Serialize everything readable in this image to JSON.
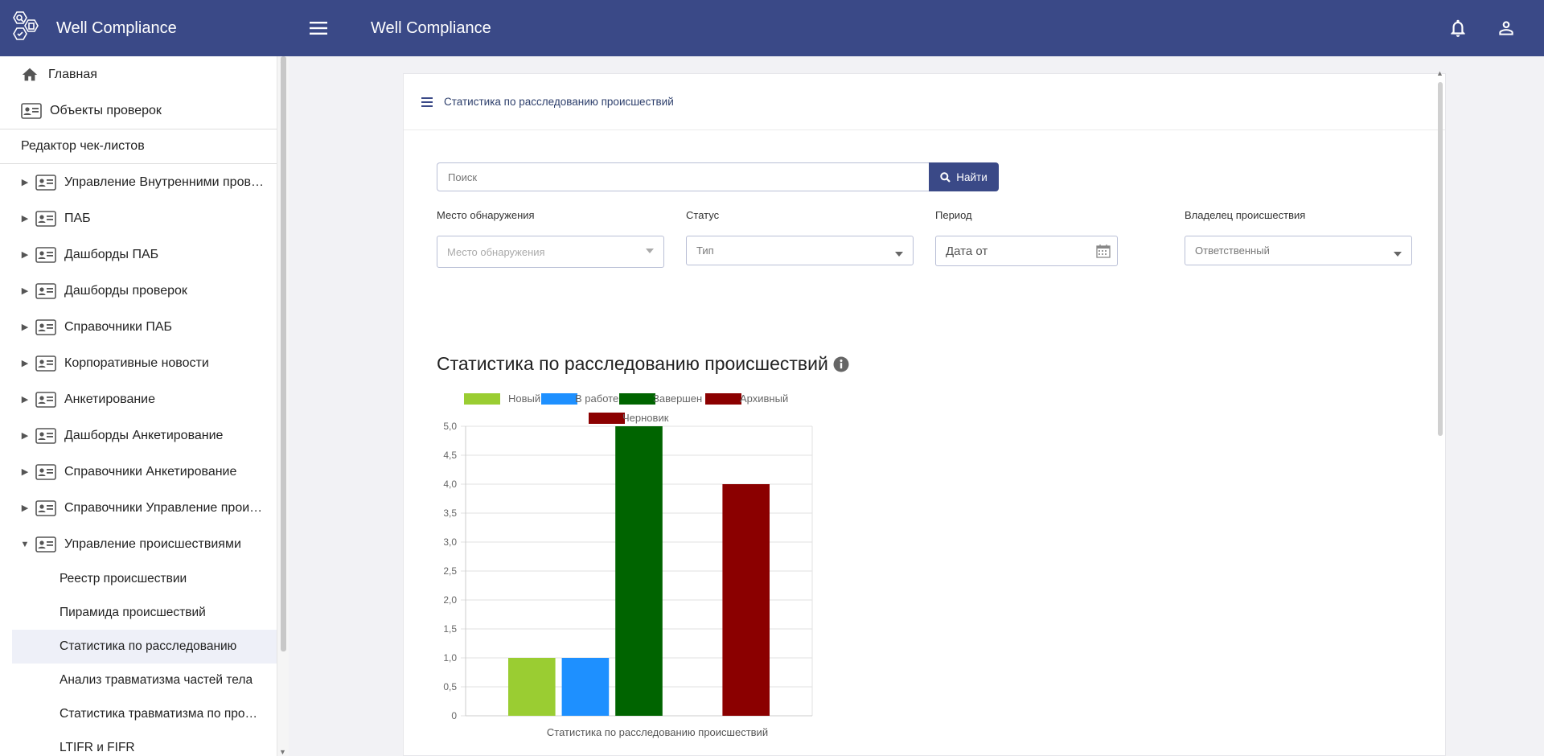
{
  "app": {
    "title": "Well Compliance"
  },
  "sidebar": {
    "title": "Well Compliance",
    "top_items": [
      {
        "label": "Главная",
        "icon": "home-icon"
      },
      {
        "label": "Объекты проверок",
        "icon": "id-card-icon"
      }
    ],
    "section_label": "Редактор чек-листов",
    "tree_items": [
      {
        "label": "Управление Внутренними пров…",
        "expanded": false
      },
      {
        "label": "ПАБ",
        "expanded": false
      },
      {
        "label": "Дашборды ПАБ",
        "expanded": false
      },
      {
        "label": "Дашборды проверок",
        "expanded": false
      },
      {
        "label": "Справочники ПАБ",
        "expanded": false
      },
      {
        "label": "Корпоративные новости",
        "expanded": false
      },
      {
        "label": "Анкетирование",
        "expanded": false
      },
      {
        "label": "Дашборды Анкетирование",
        "expanded": false
      },
      {
        "label": "Справочники Анкетирование",
        "expanded": false
      },
      {
        "label": "Справочники Управление прои…",
        "expanded": false
      },
      {
        "label": "Управление происшествиями",
        "expanded": true
      }
    ],
    "child_items": [
      {
        "label": "Реестр происшествии",
        "active": false
      },
      {
        "label": "Пирамида происшествий",
        "active": false
      },
      {
        "label": "Статистика по расследованию",
        "active": true
      },
      {
        "label": "Анализ травматизма частей тела",
        "active": false
      },
      {
        "label": "Статистика травматизма по про…",
        "active": false
      },
      {
        "label": "LTIFR и FIFR",
        "active": false
      }
    ]
  },
  "topbar": {
    "title": "Well Compliance"
  },
  "card": {
    "header": "Статистика по расследованию происшествий",
    "search": {
      "placeholder": "Поиск",
      "button": "Найти"
    },
    "filters": [
      {
        "label": "Место обнаружения",
        "placeholder": "Место обнаружения"
      },
      {
        "label": "Статус",
        "placeholder": "Тип"
      },
      {
        "label": "Период",
        "placeholder": "Дата от"
      },
      {
        "label": "Владелец происшествия",
        "placeholder": "Ответственный"
      }
    ],
    "stat_title": "Статистика по расследованию происшествий"
  },
  "colors": {
    "primary": "#3a4987",
    "accent_bg": "#eef0f8"
  },
  "chart_data": {
    "type": "bar",
    "title": "",
    "xlabel": "Статистика по расследованию происшествий",
    "ylabel": "",
    "ylim": [
      0,
      5
    ],
    "yticks": [
      "0",
      "0,5",
      "1,0",
      "1,5",
      "2,0",
      "2,5",
      "3,0",
      "3,5",
      "4,0",
      "4,5",
      "5,0"
    ],
    "legend_placement": "top",
    "grid": true,
    "series": [
      {
        "name": "Новый",
        "color": "#9acd32",
        "value": 1
      },
      {
        "name": "В работе",
        "color": "#1e90ff",
        "value": 1
      },
      {
        "name": "Завершен",
        "color": "#006400",
        "value": 5
      },
      {
        "name": "Архивный",
        "color": "#8b0000",
        "value": 0
      },
      {
        "name": "Черновик",
        "color": "#8b0000",
        "value": 4
      }
    ]
  }
}
